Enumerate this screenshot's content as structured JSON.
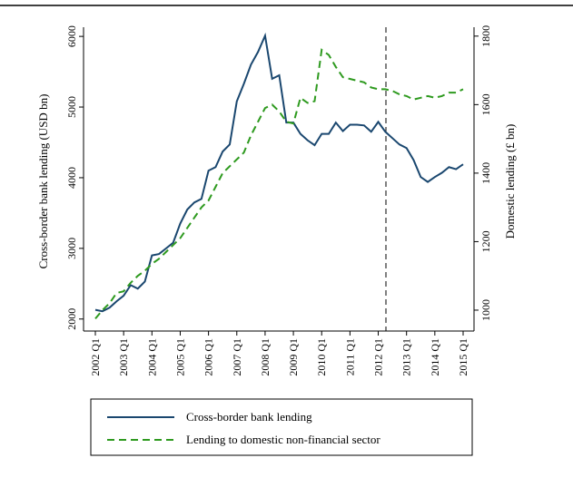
{
  "chart_data": {
    "type": "line",
    "categories": [
      "2002 Q1",
      null,
      null,
      null,
      "2003 Q1",
      null,
      null,
      null,
      "2004 Q1",
      null,
      null,
      null,
      "2005 Q1",
      null,
      null,
      null,
      "2006 Q1",
      null,
      null,
      null,
      "2007 Q1",
      null,
      null,
      null,
      "2008 Q1",
      null,
      null,
      null,
      "2009 Q1",
      null,
      null,
      null,
      "2010 Q1",
      null,
      null,
      null,
      "2011 Q1",
      null,
      null,
      null,
      "2012 Q1",
      null,
      null,
      null,
      "2013 Q1",
      null,
      null,
      null,
      "2014 Q1",
      null,
      null,
      null,
      "2015 Q1"
    ],
    "y_label": "Cross-border bank lending (USD bn)",
    "y2_label": "Domestic lending (£ bn)",
    "ylim": [
      1830,
      6130
    ],
    "yticks": [
      2000,
      3000,
      4000,
      5000,
      6000
    ],
    "y2lim": [
      939,
      1826
    ],
    "y2ticks": [
      1000,
      1200,
      1400,
      1600,
      1800
    ],
    "series": [
      {
        "name": "Cross-border bank lending",
        "color": "#1a476f",
        "style": "solid",
        "axis": "y",
        "values": [
          2130,
          2110,
          2160,
          2250,
          2330,
          2480,
          2430,
          2530,
          2900,
          2920,
          3000,
          3080,
          3350,
          3550,
          3650,
          3700,
          4100,
          4150,
          4370,
          4470,
          5080,
          5330,
          5600,
          5780,
          6010,
          5400,
          5450,
          4780,
          4780,
          4620,
          4530,
          4460,
          4620,
          4620,
          4780,
          4660,
          4750,
          4750,
          4740,
          4650,
          4790,
          4650,
          4560,
          4470,
          4420,
          4250,
          4010,
          3940,
          4010,
          4070,
          4150,
          4120,
          4190
        ]
      },
      {
        "name": "Lending to domestic non-financial sector",
        "color": "#2e9a1f",
        "style": "dashed",
        "axis": "y2",
        "values": [
          975,
          1000,
          1020,
          1050,
          1055,
          1080,
          1100,
          1115,
          1135,
          1150,
          1170,
          1190,
          1210,
          1240,
          1270,
          1300,
          1320,
          1360,
          1400,
          1420,
          1440,
          1460,
          1510,
          1550,
          1590,
          1600,
          1580,
          1550,
          1545,
          1620,
          1605,
          1610,
          1760,
          1745,
          1710,
          1680,
          1675,
          1670,
          1665,
          1650,
          1645,
          1645,
          1640,
          1630,
          1625,
          1615,
          1620,
          1625,
          1620,
          1625,
          1635,
          1635,
          1645
        ]
      }
    ]
  }
}
